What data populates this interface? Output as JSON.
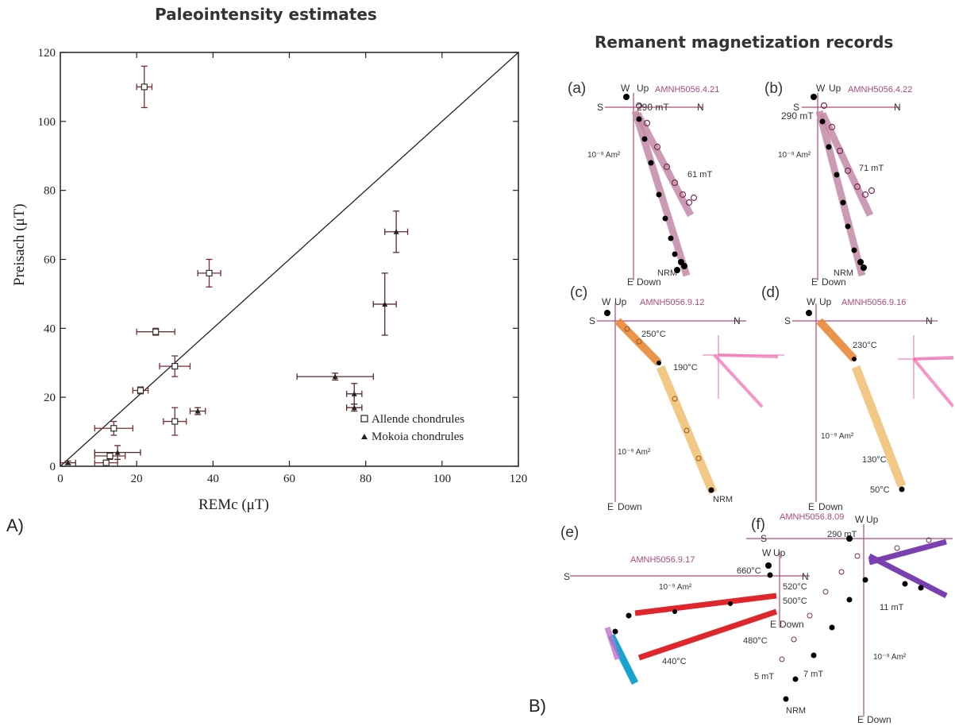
{
  "titles": {
    "left": "Paleointensity estimates",
    "right": "Remanent magnetization records"
  },
  "panel_labels": {
    "A": "A)",
    "B": "B)"
  },
  "chart_data": [
    {
      "type": "scatter",
      "title": "Paleointensity estimates",
      "xlabel": "REMc (μT)",
      "ylabel": "Preisach (μT)",
      "xlim": [
        0,
        120
      ],
      "ylim": [
        0,
        120
      ],
      "x_ticks": [
        "0",
        "20",
        "40",
        "60",
        "80",
        "100",
        "120"
      ],
      "y_ticks": [
        "0",
        "20",
        "40",
        "60",
        "80",
        "100",
        "120"
      ],
      "grid": false,
      "legend_position": "bottom-right",
      "reference_line": {
        "label": "",
        "points": [
          [
            0,
            0
          ],
          [
            120,
            120
          ]
        ]
      },
      "series": [
        {
          "name": "Allende chondrules",
          "marker": "open-square",
          "points": [
            {
              "x": 22,
              "y": 110,
              "xerr": 2,
              "yerr": 6
            },
            {
              "x": 39,
              "y": 56,
              "xerr": 3,
              "yerr": 4
            },
            {
              "x": 25,
              "y": 39,
              "xerr": 5,
              "yerr": 1
            },
            {
              "x": 30,
              "y": 29,
              "xerr": 4,
              "yerr": 3
            },
            {
              "x": 21,
              "y": 22,
              "xerr": 2,
              "yerr": 1
            },
            {
              "x": 30,
              "y": 13,
              "xerr": 3,
              "yerr": 4
            },
            {
              "x": 14,
              "y": 11,
              "xerr": 5,
              "yerr": 2
            },
            {
              "x": 13,
              "y": 3,
              "xerr": 4,
              "yerr": 1
            },
            {
              "x": 12,
              "y": 1,
              "xerr": 3,
              "yerr": 0.5
            }
          ]
        },
        {
          "name": "Mokoia chondrules",
          "marker": "filled-triangle",
          "points": [
            {
              "x": 88,
              "y": 68,
              "xerr": 3,
              "yerr": 6
            },
            {
              "x": 85,
              "y": 47,
              "xerr": 3,
              "yerr": 9
            },
            {
              "x": 72,
              "y": 26,
              "xerr": 10,
              "yerr": 1
            },
            {
              "x": 77,
              "y": 21,
              "xerr": 2,
              "yerr": 3
            },
            {
              "x": 77,
              "y": 17,
              "xerr": 2,
              "yerr": 1
            },
            {
              "x": 36,
              "y": 16,
              "xerr": 2,
              "yerr": 1
            },
            {
              "x": 15,
              "y": 4,
              "xerr": 6,
              "yerr": 2
            },
            {
              "x": 2,
              "y": 1,
              "xerr": 2,
              "yerr": 0.5
            }
          ]
        }
      ]
    }
  ],
  "zijderveld": {
    "a": {
      "letter": "(a)",
      "sample": "AMNH5056.4.21",
      "labels": [
        "W",
        "Up",
        "S",
        "N",
        "E",
        "Down",
        "290 mT",
        "61 mT",
        "NRM",
        "10⁻⁹ Am²"
      ]
    },
    "b": {
      "letter": "(b)",
      "sample": "AMNH5056.4.22",
      "labels": [
        "W",
        "Up",
        "S",
        "N",
        "E",
        "Down",
        "290 mT",
        "71 mT",
        "NRM",
        "10⁻⁹ Am²"
      ]
    },
    "c": {
      "letter": "(c)",
      "sample": "AMNH5056.9.12",
      "labels": [
        "W",
        "Up",
        "S",
        "N",
        "E",
        "Down",
        "250°C",
        "190°C",
        "NRM",
        "10⁻⁹ Am²"
      ]
    },
    "d": {
      "letter": "(d)",
      "sample": "AMNH5056.9.16",
      "labels": [
        "W",
        "Up",
        "S",
        "N",
        "E",
        "Down",
        "230°C",
        "130°C",
        "50°C",
        "10⁻⁹ Am²"
      ]
    },
    "e": {
      "letter": "(e)",
      "sample": "AMNH5056.9.17",
      "labels": [
        "W",
        "Up",
        "S",
        "N",
        "E",
        "Down",
        "660°C",
        "520°C",
        "500°C",
        "480°C",
        "440°C",
        "10⁻⁹ Am²"
      ]
    },
    "f": {
      "letter": "(f)",
      "sample": "AMNH5056.8.09",
      "labels": [
        "W",
        "Up",
        "S",
        "E",
        "Down",
        "290 mT",
        "11 mT",
        "7 mT",
        "5 mT",
        "NRM",
        "10⁻⁹ Am²"
      ]
    }
  },
  "colors": {
    "axis_pink": "#b04a7a",
    "arrow_mauve": "#c48aa6",
    "arrow_orange": "#e8822a",
    "arrow_yellow": "#f2c27a",
    "arrow_red": "#e0262a",
    "arrow_cyan": "#1aa3cf",
    "arrow_violet": "#7a3fb0",
    "pink_bright": "#f06ab0"
  }
}
